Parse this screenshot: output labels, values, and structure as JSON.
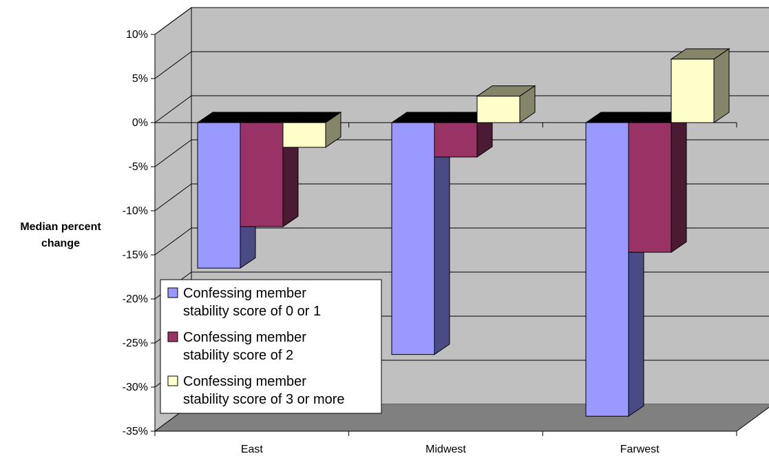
{
  "chart_data": {
    "type": "bar",
    "title": "",
    "xlabel": "",
    "ylabel": "Median percent change",
    "categories": [
      "East",
      "Midwest",
      "Farwest"
    ],
    "series": [
      {
        "name": "Confessing member stability score of 0 or 1",
        "values": [
          -16.5,
          -26.3,
          -33.3
        ]
      },
      {
        "name": "Confessing member stability score of 2",
        "values": [
          -11.8,
          -3.9,
          -14.7
        ]
      },
      {
        "name": "Confessing member stability score of 3 or more",
        "values": [
          -2.8,
          3.0,
          7.2
        ]
      }
    ],
    "ylim": [
      -35,
      10
    ],
    "yticks": [
      10,
      5,
      0,
      -5,
      -10,
      -15,
      -20,
      -25,
      -30,
      -35
    ],
    "ytick_labels": [
      "10%",
      "5%",
      "0%",
      "-5%",
      "-10%",
      "-15%",
      "-20%",
      "-25%",
      "-30%",
      "-35%"
    ],
    "grid": true,
    "legend_position": "bottom-left inside plot",
    "legend_lines": [
      [
        "Confessing member",
        "stability score of 0 or 1"
      ],
      [
        "Confessing member",
        "stability score of 2"
      ],
      [
        "Confessing member",
        "stability score of 3 or more"
      ]
    ],
    "colors": {
      "series": [
        "#9999FF",
        "#993366",
        "#FFFFCC"
      ],
      "series_side": [
        "#4A4A85",
        "#4A1B33",
        "#85856A"
      ],
      "wall": "#C0C0C0",
      "floor": "#808080",
      "bar_top": "#000000"
    }
  }
}
